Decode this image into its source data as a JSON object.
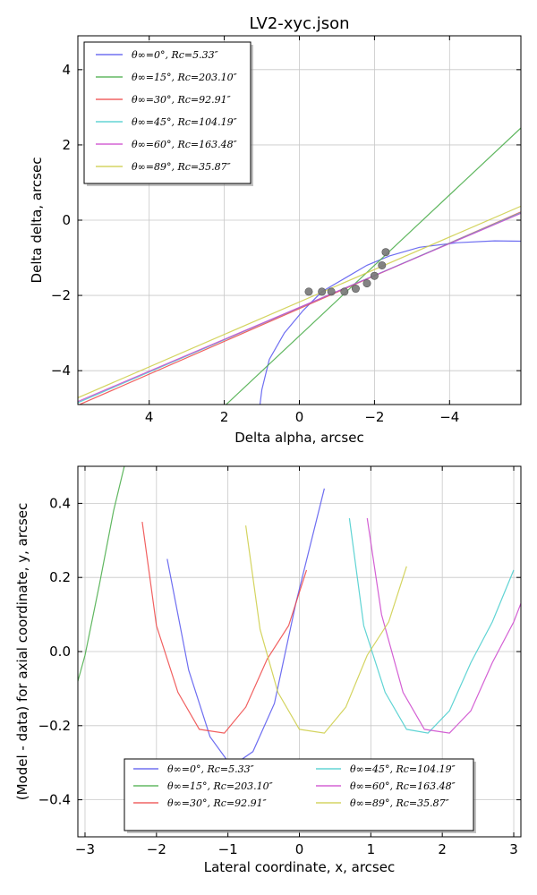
{
  "chart_data": [
    {
      "type": "line",
      "title": "LV2-xyc.json",
      "xlabel": "Delta alpha, arcsec",
      "ylabel": "Delta delta, arcsec",
      "xlim": [
        5.9,
        -5.9
      ],
      "ylim": [
        -4.9,
        4.9
      ],
      "xticks": [
        4,
        2,
        0,
        -2,
        -4
      ],
      "xtick_labels": [
        "4",
        "2",
        "0",
        "−2",
        "−4"
      ],
      "yticks": [
        4,
        2,
        0,
        -2,
        -4
      ],
      "ytick_labels": [
        "4",
        "2",
        "0",
        "−2",
        "−4"
      ],
      "grid": true,
      "legend_position": "top-left",
      "series": [
        {
          "name": "θ∞=0°, Rc=5.33″",
          "color": "#5555ee",
          "x": [
            1.05,
            1.0,
            0.8,
            0.4,
            -0.1,
            -0.6,
            -1.2,
            -1.8,
            -2.4,
            -3.2,
            -4.2,
            -5.2,
            -5.9
          ],
          "y": [
            -4.9,
            -4.5,
            -3.7,
            -3.0,
            -2.4,
            -1.9,
            -1.55,
            -1.2,
            -0.95,
            -0.72,
            -0.6,
            -0.55,
            -0.56
          ]
        },
        {
          "name": "θ∞=15°, Rc=203.10″",
          "color": "#44aa44",
          "x": [
            1.95,
            -5.9
          ],
          "y": [
            -4.9,
            2.45
          ]
        },
        {
          "name": "θ∞=30°, Rc=92.91″",
          "color": "#ee4444",
          "x": [
            5.9,
            -5.9
          ],
          "y": [
            -4.92,
            0.22
          ]
        },
        {
          "name": "θ∞=45°, Rc=104.19″",
          "color": "#44cccc",
          "x": [
            5.9,
            -5.9
          ],
          "y": [
            -4.85,
            0.2
          ]
        },
        {
          "name": "θ∞=60°, Rc=163.48″",
          "color": "#cc44cc",
          "x": [
            5.9,
            -5.9
          ],
          "y": [
            -4.82,
            0.18
          ]
        },
        {
          "name": "θ∞=89°, Rc=35.87″",
          "color": "#cccc44",
          "x": [
            5.9,
            -5.9
          ],
          "y": [
            -4.72,
            0.37
          ]
        }
      ],
      "points": {
        "color": "#777777",
        "x": [
          -0.25,
          -0.6,
          -0.85,
          -1.2,
          -1.5,
          -1.8,
          -2.0,
          -2.2,
          -2.3
        ],
        "y": [
          -1.9,
          -1.9,
          -1.9,
          -1.9,
          -1.82,
          -1.68,
          -1.48,
          -1.2,
          -0.85
        ]
      }
    },
    {
      "type": "line",
      "title": "",
      "xlabel": "Lateral coordinate, x, arcsec",
      "ylabel": "(Model - data) for axial coordinate, y, arcsec",
      "xlim": [
        -3.1,
        3.1
      ],
      "ylim": [
        -0.5,
        0.5
      ],
      "xticks": [
        -3,
        -2,
        -1,
        0,
        1,
        2,
        3
      ],
      "xtick_labels": [
        "−3",
        "−2",
        "−1",
        "0",
        "1",
        "2",
        "3"
      ],
      "yticks": [
        0.4,
        0.2,
        0.0,
        -0.2,
        -0.4
      ],
      "ytick_labels": [
        "0.4",
        "0.2",
        "0.0",
        "−0.2",
        "−0.4"
      ],
      "grid": true,
      "legend_position": "bottom-center",
      "series": [
        {
          "name": "θ∞=0°, Rc=5.33″",
          "color": "#5555ee",
          "x": [
            -1.85,
            -1.55,
            -1.25,
            -0.95,
            -0.65,
            -0.35,
            -0.05,
            0.35
          ],
          "y": [
            0.25,
            -0.05,
            -0.23,
            -0.31,
            -0.27,
            -0.14,
            0.13,
            0.44
          ]
        },
        {
          "name": "θ∞=15°, Rc=203.10″",
          "color": "#44aa44",
          "x": [
            -3.1,
            -3.0,
            -2.8,
            -2.6,
            -2.45
          ],
          "y": [
            -0.08,
            -0.01,
            0.18,
            0.38,
            0.5
          ]
        },
        {
          "name": "θ∞=30°, Rc=92.91″",
          "color": "#ee4444",
          "x": [
            -2.2,
            -2.0,
            -1.7,
            -1.4,
            -1.05,
            -0.75,
            -0.45,
            -0.15,
            0.1
          ],
          "y": [
            0.35,
            0.07,
            -0.11,
            -0.21,
            -0.22,
            -0.15,
            -0.02,
            0.07,
            0.22
          ]
        },
        {
          "name": "θ∞=45°, Rc=104.19″",
          "color": "#44cccc",
          "x": [
            0.7,
            0.9,
            1.2,
            1.5,
            1.8,
            2.1,
            2.4,
            2.7,
            3.0
          ],
          "y": [
            0.36,
            0.07,
            -0.11,
            -0.21,
            -0.22,
            -0.16,
            -0.03,
            0.08,
            0.22
          ]
        },
        {
          "name": "θ∞=60°, Rc=163.48″",
          "color": "#cc44cc",
          "x": [
            0.95,
            1.15,
            1.45,
            1.75,
            2.1,
            2.4,
            2.7,
            3.0,
            3.1
          ],
          "y": [
            0.36,
            0.1,
            -0.11,
            -0.21,
            -0.22,
            -0.16,
            -0.03,
            0.08,
            0.13
          ]
        },
        {
          "name": "θ∞=89°, Rc=35.87″",
          "color": "#cccc44",
          "x": [
            -0.75,
            -0.55,
            -0.3,
            0.0,
            0.35,
            0.65,
            0.95,
            1.25,
            1.5
          ],
          "y": [
            0.34,
            0.06,
            -0.11,
            -0.21,
            -0.22,
            -0.15,
            -0.01,
            0.08,
            0.23
          ]
        }
      ]
    }
  ]
}
